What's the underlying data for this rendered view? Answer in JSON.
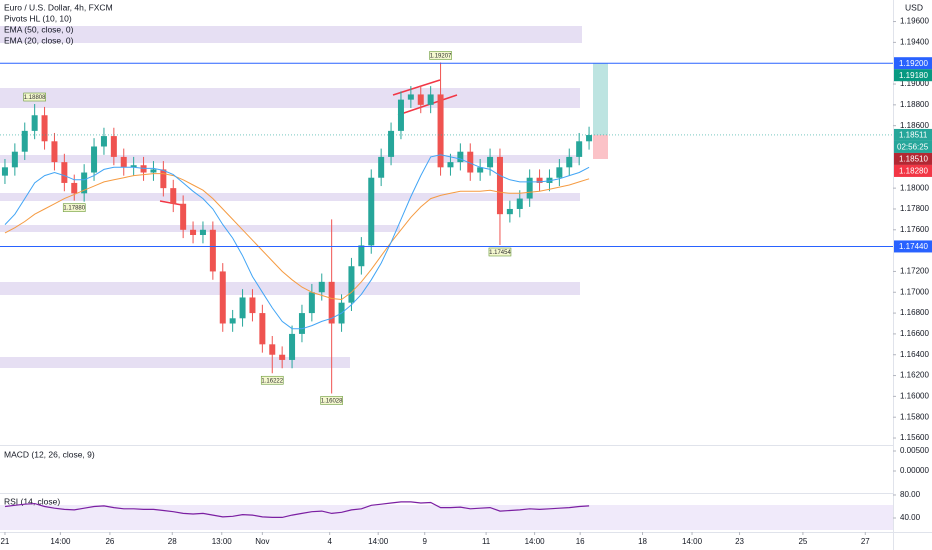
{
  "chart_data": {
    "type": "candlestick",
    "title": "Euro / U.S. Dollar, 4h, FXCM",
    "indicator": "Pivots HL (10, 10)",
    "currency": "USD",
    "up_color": "#26a69a",
    "down_color": "#ef5350",
    "open": [
      1.1812,
      1.182,
      1.1835,
      1.1855,
      1.187,
      1.1845,
      1.1825,
      1.1805,
      1.1795,
      1.1815,
      1.184,
      1.185,
      1.183,
      1.182,
      1.1822,
      1.1815,
      1.1818,
      1.18,
      1.1785,
      1.176,
      1.1755,
      1.176,
      1.172,
      1.167,
      1.1675,
      1.1695,
      1.168,
      1.165,
      1.164,
      1.1635,
      1.166,
      1.168,
      1.17,
      1.171,
      1.167,
      1.169,
      1.1725,
      1.1745,
      1.181,
      1.183,
      1.1855,
      1.1885,
      1.189,
      1.188,
      1.189,
      1.182,
      1.1825,
      1.1835,
      1.1815,
      1.182,
      1.183,
      1.1775,
      1.178,
      1.179,
      1.181,
      1.1805,
      1.181,
      1.182,
      1.183,
      1.1845
    ],
    "high": [
      1.1828,
      1.1843,
      1.1863,
      1.18808,
      1.1878,
      1.1853,
      1.1833,
      1.1813,
      1.1823,
      1.1848,
      1.1858,
      1.1858,
      1.1838,
      1.183,
      1.183,
      1.1826,
      1.1826,
      1.1808,
      1.1793,
      1.1768,
      1.1768,
      1.1768,
      1.1728,
      1.1683,
      1.1703,
      1.1703,
      1.1688,
      1.1658,
      1.1648,
      1.1668,
      1.1688,
      1.1708,
      1.1718,
      1.177,
      1.1698,
      1.1733,
      1.1753,
      1.1818,
      1.1838,
      1.1863,
      1.1893,
      1.1898,
      1.1898,
      1.1898,
      1.19207,
      1.1833,
      1.1843,
      1.1843,
      1.1828,
      1.1838,
      1.1838,
      1.1788,
      1.1798,
      1.1818,
      1.1818,
      1.1818,
      1.1828,
      1.1838,
      1.1853,
      1.1859
    ],
    "low": [
      1.1804,
      1.1812,
      1.1827,
      1.1847,
      1.1837,
      1.1817,
      1.1797,
      1.1788,
      1.1787,
      1.1807,
      1.1832,
      1.1822,
      1.1812,
      1.1812,
      1.1807,
      1.1807,
      1.1792,
      1.1777,
      1.1752,
      1.1747,
      1.1747,
      1.1712,
      1.1662,
      1.1662,
      1.1667,
      1.1672,
      1.1642,
      1.16222,
      1.1627,
      1.1627,
      1.1652,
      1.1672,
      1.1692,
      1.16028,
      1.1662,
      1.1682,
      1.1717,
      1.1737,
      1.1802,
      1.1822,
      1.1847,
      1.1877,
      1.1872,
      1.1872,
      1.1812,
      1.1812,
      1.1817,
      1.1807,
      1.1807,
      1.1812,
      1.17454,
      1.1767,
      1.1772,
      1.1782,
      1.1797,
      1.1797,
      1.1802,
      1.1812,
      1.1822,
      1.1837
    ],
    "close": [
      1.182,
      1.1835,
      1.1855,
      1.187,
      1.1845,
      1.1825,
      1.1805,
      1.1795,
      1.1815,
      1.184,
      1.185,
      1.183,
      1.182,
      1.1822,
      1.1815,
      1.1818,
      1.18,
      1.1785,
      1.176,
      1.1755,
      1.176,
      1.172,
      1.167,
      1.1675,
      1.1695,
      1.168,
      1.165,
      1.164,
      1.1635,
      1.166,
      1.168,
      1.17,
      1.171,
      1.167,
      1.169,
      1.1725,
      1.1745,
      1.181,
      1.183,
      1.1855,
      1.1885,
      1.189,
      1.188,
      1.189,
      1.182,
      1.1825,
      1.1835,
      1.1815,
      1.182,
      1.183,
      1.1775,
      1.178,
      1.179,
      1.181,
      1.1805,
      1.181,
      1.182,
      1.183,
      1.1845,
      1.1851
    ],
    "high_labels": [
      null,
      null,
      null,
      "1.18808",
      null,
      null,
      null,
      null,
      null,
      null,
      null,
      null,
      null,
      null,
      null,
      null,
      null,
      null,
      null,
      null,
      null,
      null,
      null,
      null,
      null,
      null,
      null,
      null,
      null,
      null,
      null,
      null,
      null,
      null,
      null,
      null,
      null,
      null,
      null,
      null,
      null,
      null,
      null,
      null,
      "1.19207",
      null,
      null,
      null,
      null,
      null,
      null,
      null,
      null,
      null,
      null,
      null,
      null,
      null,
      null,
      null
    ],
    "low_labels": [
      null,
      null,
      null,
      null,
      null,
      null,
      null,
      "1.17880",
      null,
      null,
      null,
      null,
      null,
      null,
      null,
      null,
      null,
      null,
      null,
      null,
      null,
      null,
      null,
      null,
      null,
      null,
      null,
      "1.16222",
      null,
      null,
      null,
      null,
      null,
      "1.16028",
      null,
      null,
      null,
      null,
      null,
      null,
      null,
      null,
      null,
      null,
      null,
      null,
      null,
      null,
      null,
      null,
      "1.17454",
      null,
      null,
      null,
      null,
      null,
      null,
      null,
      null,
      null
    ],
    "series": [
      {
        "name": "EMA (50, close, 0)",
        "color": "#f59b42",
        "values": [
          1.1757,
          1.1762,
          1.1768,
          1.1775,
          1.178,
          1.1785,
          1.179,
          1.1794,
          1.1798,
          1.1802,
          1.1806,
          1.1808,
          1.181,
          1.1812,
          1.1813,
          1.1814,
          1.1814,
          1.1812,
          1.1808,
          1.1803,
          1.1798,
          1.179,
          1.178,
          1.177,
          1.176,
          1.175,
          1.174,
          1.173,
          1.172,
          1.1712,
          1.1705,
          1.17,
          1.1697,
          1.1694,
          1.1693,
          1.17,
          1.171,
          1.1722,
          1.1735,
          1.1748,
          1.176,
          1.1772,
          1.1782,
          1.179,
          1.1793,
          1.1795,
          1.1797,
          1.1797,
          1.1797,
          1.1798,
          1.1796,
          1.1795,
          1.1795,
          1.1796,
          1.1797,
          1.1799,
          1.1801,
          1.1803,
          1.1806,
          1.1809
        ]
      },
      {
        "name": "EMA (20, close, 0)",
        "color": "#42a5f5",
        "values": [
          1.1765,
          1.1775,
          1.179,
          1.1805,
          1.1812,
          1.1815,
          1.1812,
          1.1808,
          1.1808,
          1.1812,
          1.1818,
          1.182,
          1.182,
          1.182,
          1.1819,
          1.1819,
          1.1817,
          1.1813,
          1.1805,
          1.1797,
          1.179,
          1.178,
          1.1765,
          1.1752,
          1.1735,
          1.1715,
          1.17,
          1.1685,
          1.1672,
          1.1665,
          1.1665,
          1.1668,
          1.1672,
          1.1675,
          1.168,
          1.1688,
          1.1698,
          1.1712,
          1.1728,
          1.1748,
          1.177,
          1.1792,
          1.1812,
          1.183,
          1.1832,
          1.183,
          1.1828,
          1.1824,
          1.182,
          1.1818,
          1.1812,
          1.1808,
          1.1806,
          1.1806,
          1.1806,
          1.1807,
          1.1809,
          1.1812,
          1.1815,
          1.182
        ]
      }
    ],
    "xlim": [
      -0.5,
      89.7
    ],
    "ylim": [
      1.15533,
      1.19807
    ],
    "yticks": [
      {
        "value": 1.196,
        "label": "1.19600"
      },
      {
        "value": 1.194,
        "label": "1.19400"
      },
      {
        "value": 1.19,
        "label": "1.19000"
      },
      {
        "value": 1.188,
        "label": "1.18800"
      },
      {
        "value": 1.186,
        "label": "1.18600"
      },
      {
        "value": 1.18,
        "label": "1.18000"
      },
      {
        "value": 1.178,
        "label": "1.17800"
      },
      {
        "value": 1.176,
        "label": "1.17600"
      },
      {
        "value": 1.172,
        "label": "1.17200"
      },
      {
        "value": 1.17,
        "label": "1.17000"
      },
      {
        "value": 1.168,
        "label": "1.16800"
      },
      {
        "value": 1.166,
        "label": "1.16600"
      },
      {
        "value": 1.164,
        "label": "1.16400"
      },
      {
        "value": 1.162,
        "label": "1.16200"
      },
      {
        "value": 1.16,
        "label": "1.16000"
      },
      {
        "value": 1.158,
        "label": "1.15800"
      },
      {
        "value": 1.156,
        "label": "1.15600"
      }
    ],
    "xticks": [
      {
        "value": 0,
        "label": "21"
      },
      {
        "value": 5.6,
        "label": "14:00"
      },
      {
        "value": 10.6,
        "label": "26"
      },
      {
        "value": 16.9,
        "label": "28"
      },
      {
        "value": 21.9,
        "label": "13:00"
      },
      {
        "value": 26,
        "label": "Nov"
      },
      {
        "value": 32.8,
        "label": "4"
      },
      {
        "value": 37.7,
        "label": "14:00"
      },
      {
        "value": 42.4,
        "label": "9"
      },
      {
        "value": 48.6,
        "label": "11"
      },
      {
        "value": 53.5,
        "label": "14:00"
      },
      {
        "value": 58.1,
        "label": "16"
      },
      {
        "value": 64.4,
        "label": "18"
      },
      {
        "value": 69.4,
        "label": "14:00"
      },
      {
        "value": 74.2,
        "label": "23"
      },
      {
        "value": 80.6,
        "label": "25"
      },
      {
        "value": 86.9,
        "label": "27"
      }
    ],
    "levels": [
      {
        "value": 1.192,
        "label": "1.19200"
      },
      {
        "value": 1.1744,
        "label": "1.17440"
      }
    ],
    "level_color": "#2962ff",
    "price_labels": [
      {
        "value": 1.1918,
        "label": "1.19180",
        "color": "#089981"
      },
      {
        "value": 1.18511,
        "label": "1.18511",
        "color": "#26a69a"
      },
      {
        "value": 1.1851,
        "label": "1.18510",
        "color": "#b22833"
      },
      {
        "value": 1.1828,
        "label": "1.18280",
        "color": "#f23645"
      }
    ],
    "countdown": "02:56:25",
    "macd": {
      "title": "MACD (12, 26, close, 9)",
      "ylim": [
        -0.00525,
        0.006
      ],
      "yticks": [
        {
          "value": 0.005,
          "label": "0.00500"
        },
        {
          "value": 0,
          "label": "0.00000"
        }
      ]
    },
    "rsi": {
      "title": "RSI (14, close)",
      "color": "#7b1fa2",
      "ylim": [
        15.7,
        81.7
      ],
      "yticks": [
        {
          "value": 80,
          "label": "80.00"
        },
        {
          "value": 40,
          "label": "40.00"
        }
      ],
      "values": [
        60,
        62,
        64,
        65,
        60,
        57,
        55,
        54,
        57,
        60,
        61,
        58,
        56,
        56,
        55,
        55,
        53,
        51,
        48,
        47,
        48,
        45,
        42,
        43,
        46,
        45,
        42,
        41,
        41,
        45,
        48,
        51,
        52,
        48,
        50,
        54,
        56,
        62,
        64,
        66,
        68,
        68,
        66,
        67,
        58,
        58,
        59,
        56,
        57,
        58,
        52,
        53,
        54,
        56,
        55,
        56,
        57,
        58,
        60,
        61
      ]
    }
  }
}
